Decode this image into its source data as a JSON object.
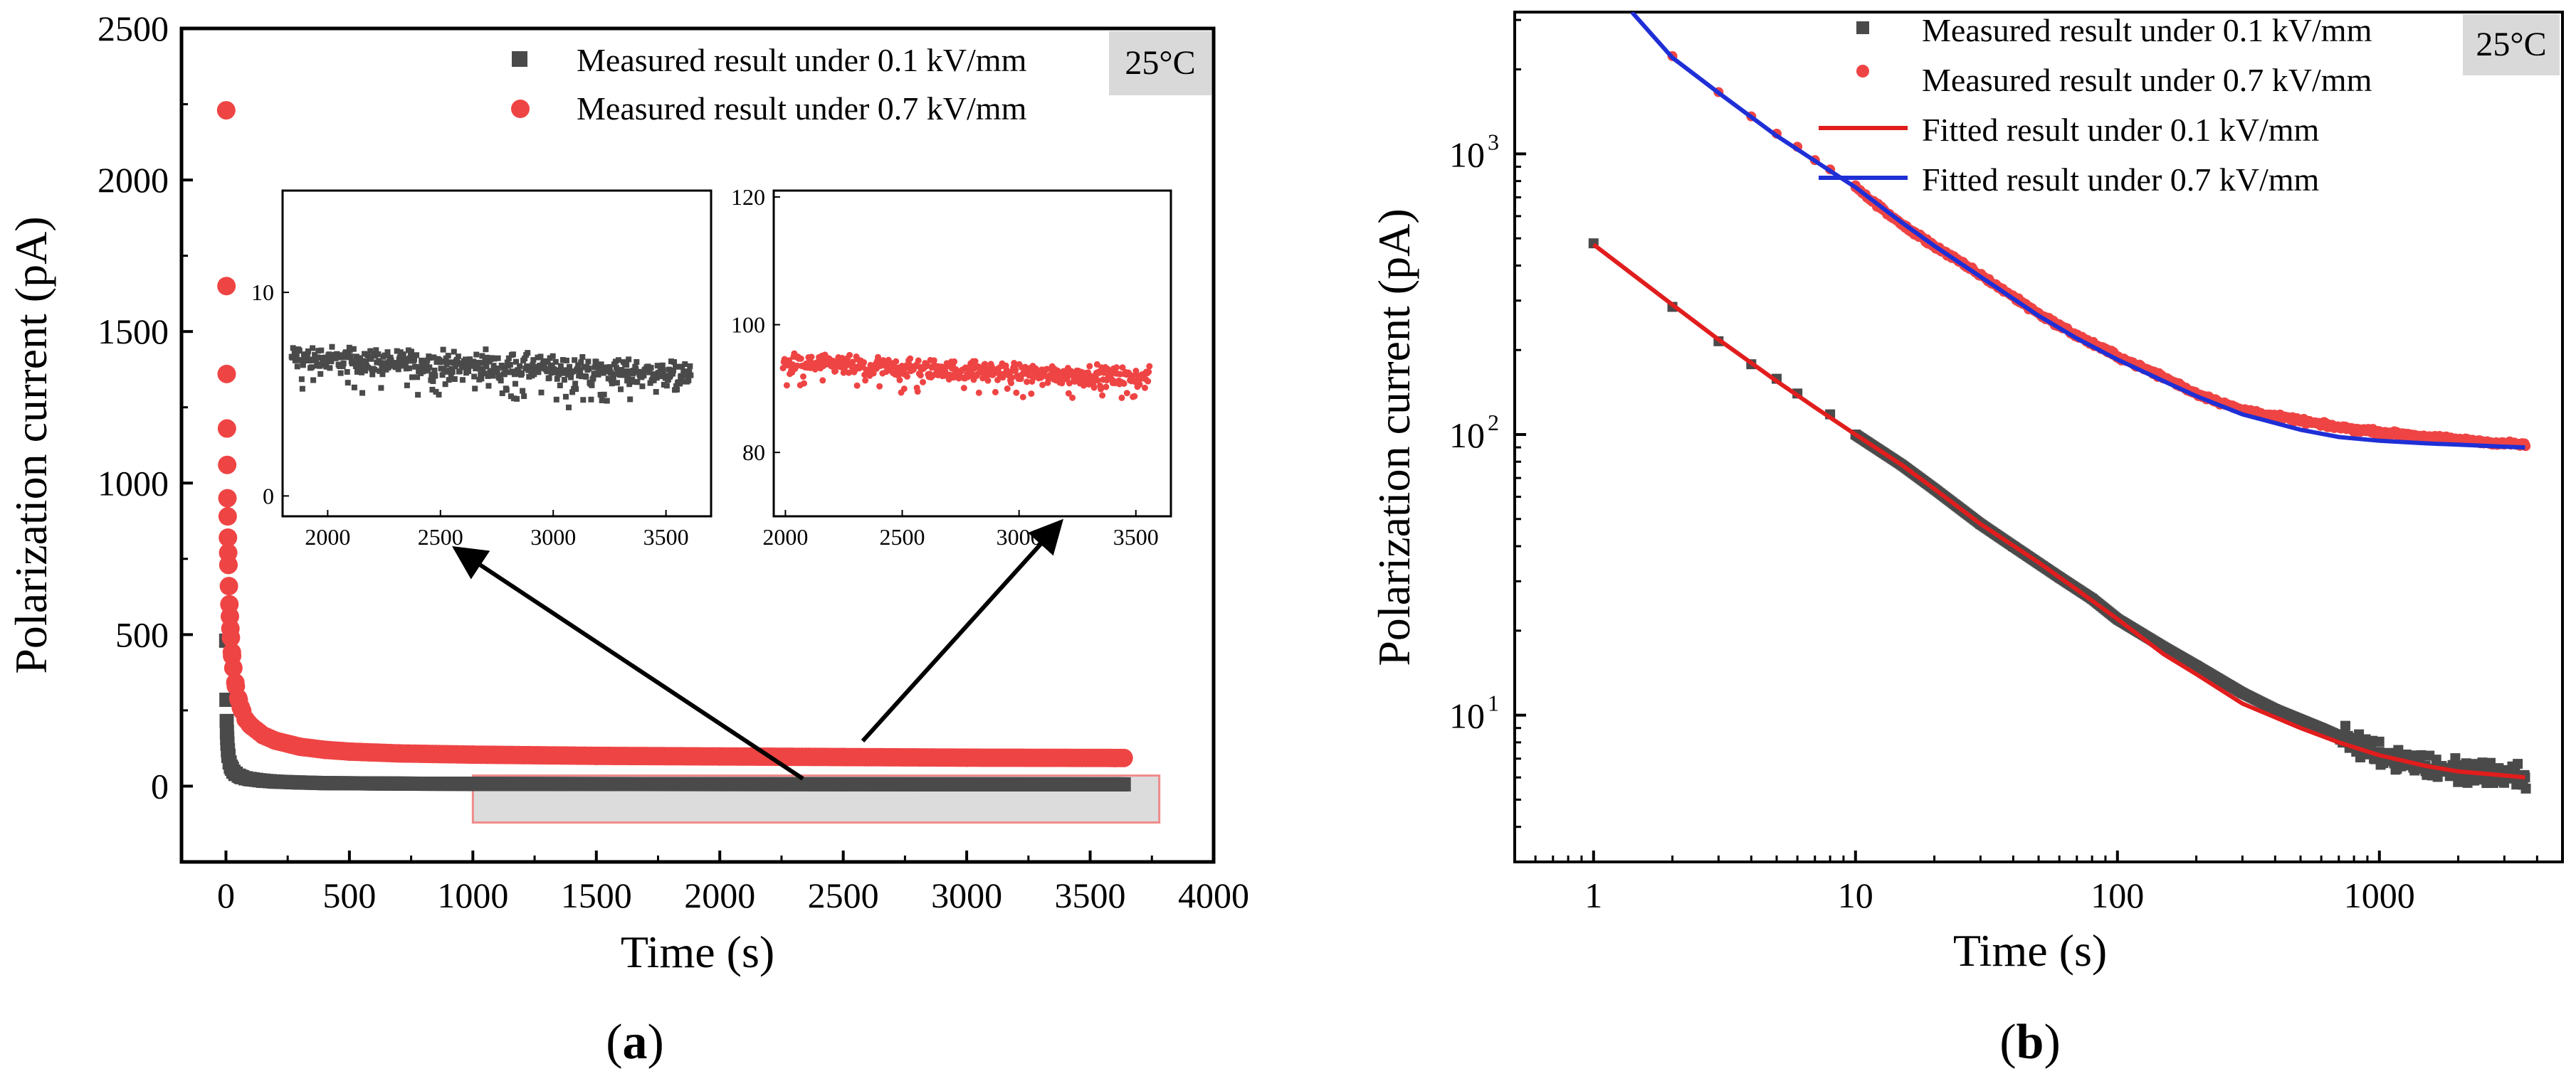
{
  "colors": {
    "low_field": "#4a4a4a",
    "high_field": "#ef4444",
    "fit_low": "#e11d1d",
    "fit_high": "#1f2fd6",
    "temp_box": "#d9d9d9",
    "highlight_fill": "#dcdcdc",
    "highlight_edge": "#f08a8a"
  },
  "chart_data": [
    {
      "id": "a",
      "type": "scatter",
      "caption": "(a)",
      "temperature_label": "25°C",
      "xlabel": "Time (s)",
      "ylabel": "Polarization current (pA)",
      "xlim": [
        -180,
        4000
      ],
      "ylim": [
        -250,
        2500
      ],
      "xticks": [
        0,
        500,
        1000,
        1500,
        2000,
        2500,
        3000,
        3500,
        4000
      ],
      "xtick_labels": [
        "0",
        "500",
        "1000",
        "1500",
        "2000",
        "2500",
        "3000",
        "3500",
        "4000"
      ],
      "yticks": [
        0,
        500,
        1000,
        1500,
        2000,
        2500
      ],
      "ytick_labels": [
        "0",
        "500",
        "1000",
        "1500",
        "2000",
        "2500"
      ],
      "highlight_region": {
        "x": [
          1000,
          3780
        ],
        "y": [
          -120,
          35
        ]
      },
      "series": [
        {
          "name": "Measured result under 0.1 kV/mm",
          "marker": "square",
          "color_key": "low_field",
          "points": [
            [
              1,
              480
            ],
            [
              2,
              285
            ],
            [
              3,
              215
            ],
            [
              4,
              178
            ],
            [
              5,
              158
            ],
            [
              6,
              140
            ],
            [
              8,
              118
            ],
            [
              10,
              100
            ],
            [
              15,
              78
            ],
            [
              20,
              64
            ],
            [
              30,
              48
            ],
            [
              40,
              40
            ],
            [
              60,
              31
            ],
            [
              80,
              26
            ],
            [
              100,
              23
            ],
            [
              150,
              18
            ],
            [
              200,
              15
            ],
            [
              300,
              12
            ],
            [
              400,
              10
            ],
            [
              600,
              9
            ],
            [
              800,
              8
            ],
            [
              1000,
              7.5
            ],
            [
              1500,
              7
            ],
            [
              2000,
              6.8
            ],
            [
              2500,
              6.5
            ],
            [
              3000,
              6.2
            ],
            [
              3600,
              6
            ]
          ]
        },
        {
          "name": "Measured result under 0.7 kV/mm",
          "marker": "circle",
          "color_key": "high_field",
          "points": [
            [
              1,
              2230
            ],
            [
              2,
              1650
            ],
            [
              3,
              1360
            ],
            [
              4,
              1180
            ],
            [
              5,
              1060
            ],
            [
              6,
              950
            ],
            [
              7,
              890
            ],
            [
              8,
              820
            ],
            [
              9,
              770
            ],
            [
              10,
              730
            ],
            [
              12,
              660
            ],
            [
              14,
              600
            ],
            [
              16,
              560
            ],
            [
              18,
              520
            ],
            [
              20,
              490
            ],
            [
              25,
              430
            ],
            [
              30,
              390
            ],
            [
              40,
              330
            ],
            [
              50,
              290
            ],
            [
              60,
              260
            ],
            [
              80,
              220
            ],
            [
              100,
              200
            ],
            [
              150,
              168
            ],
            [
              200,
              150
            ],
            [
              300,
              130
            ],
            [
              400,
              120
            ],
            [
              500,
              114
            ],
            [
              700,
              108
            ],
            [
              1000,
              104
            ],
            [
              1500,
              100
            ],
            [
              2000,
              98
            ],
            [
              2500,
              96
            ],
            [
              3000,
              94
            ],
            [
              3600,
              93
            ]
          ]
        }
      ],
      "insets": [
        {
          "color_key": "low_field",
          "xlim": [
            1800,
            3700
          ],
          "ylim": [
            -1,
            15
          ],
          "xticks": [
            2000,
            2500,
            3000,
            3500
          ],
          "xtick_labels": [
            "2000",
            "2500",
            "3000",
            "3500"
          ],
          "yticks": [
            0,
            10
          ],
          "ytick_labels": [
            "0",
            "10"
          ],
          "mean": 6.8,
          "end": 5.9,
          "spread": 0.55
        },
        {
          "color_key": "high_field",
          "xlim": [
            1950,
            3650
          ],
          "ylim": [
            70,
            121
          ],
          "xticks": [
            2000,
            2500,
            3000,
            3500
          ],
          "xtick_labels": [
            "2000",
            "2500",
            "3000",
            "3500"
          ],
          "yticks": [
            80,
            100,
            120
          ],
          "ytick_labels": [
            "80",
            "100",
            "120"
          ],
          "mean": 94,
          "end": 91.5,
          "spread": 1.3
        }
      ]
    },
    {
      "id": "b",
      "type": "scatter",
      "scale": "log-log",
      "caption": "(b)",
      "temperature_label": "25°C",
      "xlabel": "Time (s)",
      "ylabel": "Polarization current (pA)",
      "xlim": [
        0.5,
        5000
      ],
      "ylim": [
        3,
        3200
      ],
      "xticks": [
        1,
        10,
        100,
        1000
      ],
      "xtick_labels": [
        "1",
        "10",
        "100",
        "1000"
      ],
      "yticks": [
        10,
        100,
        1000
      ],
      "ytick_labels": [
        "10",
        "10",
        "10"
      ],
      "ytick_exponents": [
        "1",
        "2",
        "3"
      ],
      "series": [
        {
          "name": "Measured result under 0.1 kV/mm",
          "marker": "square",
          "color_key": "low_field",
          "points": [
            [
              1,
              480
            ],
            [
              2,
              285
            ],
            [
              3,
              215
            ],
            [
              4,
              178
            ],
            [
              5,
              158
            ],
            [
              6,
              140
            ],
            [
              8,
              118
            ],
            [
              10,
              100
            ],
            [
              15,
              78
            ],
            [
              20,
              64
            ],
            [
              30,
              48
            ],
            [
              40,
              40
            ],
            [
              60,
              31
            ],
            [
              80,
              26
            ],
            [
              100,
              22
            ],
            [
              150,
              17.5
            ],
            [
              200,
              15
            ],
            [
              300,
              12
            ],
            [
              400,
              10.5
            ],
            [
              600,
              9
            ],
            [
              800,
              8
            ],
            [
              1000,
              7.4
            ],
            [
              1500,
              6.6
            ],
            [
              2000,
              6.3
            ],
            [
              3000,
              6.1
            ],
            [
              3600,
              6
            ]
          ]
        },
        {
          "name": "Measured result under 0.7 kV/mm",
          "marker": "circle",
          "color_key": "high_field",
          "points": [
            [
              2,
              2230
            ],
            [
              3,
              1660
            ],
            [
              4,
              1360
            ],
            [
              5,
              1180
            ],
            [
              6,
              1060
            ],
            [
              7,
              950
            ],
            [
              8,
              880
            ],
            [
              10,
              760
            ],
            [
              15,
              560
            ],
            [
              20,
              470
            ],
            [
              30,
              370
            ],
            [
              50,
              270
            ],
            [
              70,
              225
            ],
            [
              100,
              190
            ],
            [
              150,
              160
            ],
            [
              200,
              140
            ],
            [
              300,
              122
            ],
            [
              500,
              112
            ],
            [
              700,
              106
            ],
            [
              1000,
              102
            ],
            [
              1500,
              98
            ],
            [
              2000,
              96
            ],
            [
              2500,
              94
            ],
            [
              3000,
              93
            ],
            [
              3600,
              92
            ]
          ]
        },
        {
          "name": "Fitted result under 0.1 kV/mm",
          "type": "line",
          "color_key": "fit_low",
          "points": [
            [
              1,
              475
            ],
            [
              2,
              290
            ],
            [
              3,
              218
            ],
            [
              5,
              155
            ],
            [
              7,
              125
            ],
            [
              10,
              100
            ],
            [
              15,
              78
            ],
            [
              20,
              64
            ],
            [
              30,
              48
            ],
            [
              50,
              35
            ],
            [
              70,
              28
            ],
            [
              100,
              22
            ],
            [
              150,
              16.5
            ],
            [
              200,
              14
            ],
            [
              300,
              11
            ],
            [
              500,
              9
            ],
            [
              700,
              8
            ],
            [
              1000,
              7.2
            ],
            [
              1500,
              6.6
            ],
            [
              2000,
              6.3
            ],
            [
              3000,
              6.1
            ],
            [
              3600,
              6
            ]
          ]
        },
        {
          "name": "Fitted result under 0.7 kV/mm",
          "type": "line",
          "color_key": "fit_high",
          "points": [
            [
              1.4,
              3200
            ],
            [
              2,
              2200
            ],
            [
              3,
              1650
            ],
            [
              5,
              1160
            ],
            [
              8,
              870
            ],
            [
              10,
              760
            ],
            [
              15,
              570
            ],
            [
              20,
              470
            ],
            [
              30,
              365
            ],
            [
              50,
              265
            ],
            [
              70,
              220
            ],
            [
              100,
              185
            ],
            [
              150,
              155
            ],
            [
              200,
              137
            ],
            [
              300,
              118
            ],
            [
              500,
              104
            ],
            [
              700,
              98
            ],
            [
              1000,
              95
            ],
            [
              1500,
              93
            ],
            [
              2000,
              92
            ],
            [
              3000,
              90.5
            ],
            [
              3600,
              90
            ]
          ]
        }
      ]
    }
  ]
}
